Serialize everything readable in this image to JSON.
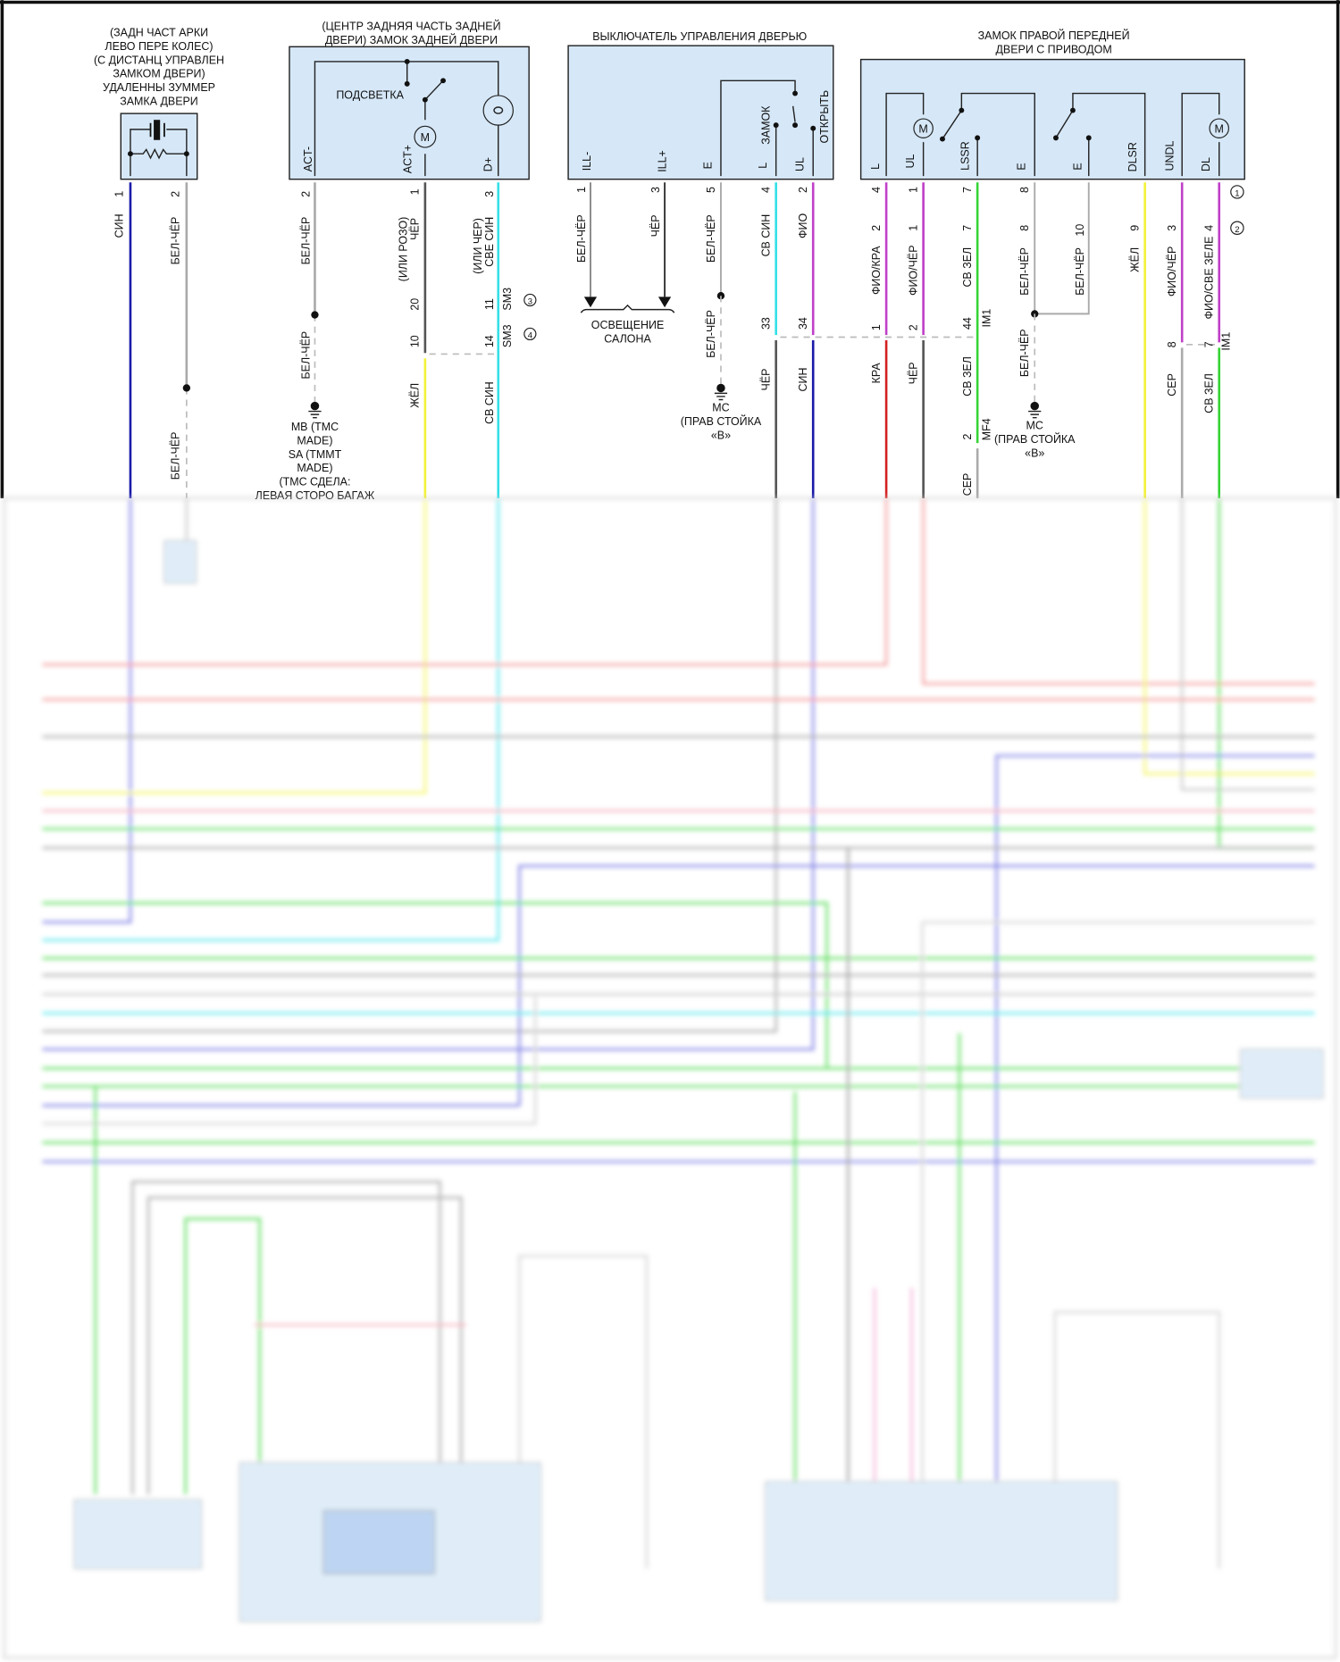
{
  "wire_colors": {
    "blue": "#1a1aa8",
    "grey": "#aaaaaa",
    "dark": "#555555",
    "cyan": "#33e0e8",
    "yellow": "#f2f23a",
    "magenta": "#c040c8",
    "red": "#d42020",
    "green": "#36d436"
  },
  "buzzer": {
    "title": [
      "(ЗАДН ЧАСТ АРКИ",
      "ЛЕВО ПЕРЕ КОЛЕС)",
      "(С ДИСТАНЦ УПРАВЛЕН",
      "ЗАМКОМ ДВЕРИ)",
      "УДАЛЕННЫ ЗУММЕР",
      "ЗАМКА ДВЕРИ"
    ],
    "pins": [
      "1",
      "2"
    ],
    "wires": [
      "СИН",
      "БЕЛ-ЧЁР",
      "БЕЛ-ЧЁР"
    ]
  },
  "rear_lock": {
    "title": [
      "(ЦЕНТР ЗАДНЯЯ ЧАСТЬ ЗАДНЕЙ",
      "ДВЕРИ) ЗАМОК ЗАДНЕЙ ДВЕРИ"
    ],
    "backlight": "ПОДСВЕТКА",
    "motor": "M",
    "terminals": [
      "ACT-",
      "ACT+",
      "D+"
    ],
    "pins": [
      "2",
      "1",
      "3"
    ],
    "wires": [
      "БЕЛ-ЧЁР",
      "ЧЁР",
      "(ИЛИ РОЗО)",
      "СВЕ СИН",
      "(ИЛИ ЧЕР)"
    ],
    "conn_a": {
      "pins": [
        "20",
        "11"
      ],
      "name": "SM3",
      "marker": "3"
    },
    "conn_b": {
      "pins": [
        "10",
        "14"
      ],
      "name": "SM3",
      "marker": "4"
    },
    "ground_wire": "БЕЛ-ЧЁР",
    "ground_label": [
      "MB (TMC",
      "MADE)",
      "SA (TMMT",
      "MADE)",
      "(TMC СДЕЛА:",
      "ЛЕВАЯ СТОРО БАГАЖ"
    ],
    "lower_wires": [
      "ЖЁЛ",
      "СВ СИН"
    ]
  },
  "door_switch": {
    "title": "ВЫКЛЮЧАТЕЛЬ УПРАВЛЕНИЯ ДВЕРЬЮ",
    "terminals": [
      "ILL-",
      "ILL+",
      "E",
      "L",
      "UL"
    ],
    "positions": [
      "ЗАМОК",
      "ОТКРЫТЬ"
    ],
    "pins": [
      "1",
      "3",
      "5",
      "4",
      "2"
    ],
    "wires": [
      "БЕЛ-ЧЁР",
      "ЧЁР",
      "БЕЛ-ЧЁР",
      "СВ СИН",
      "ФИО"
    ],
    "lighting": [
      "ОСВЕЩЕНИЕ",
      "САЛОНА"
    ],
    "ground_wire": "БЕЛ-ЧЁР",
    "ground_label": [
      "MC",
      "(ПРАВ СТОЙКА",
      "«В»"
    ],
    "conn_pins": [
      "33",
      "34"
    ],
    "lower_wires": [
      "ЧЁР",
      "СИН"
    ]
  },
  "front_lock": {
    "title": [
      "ЗАМОК ПРАВОЙ ПЕРЕДНЕЙ",
      "ДВЕРИ С ПРИВОДОМ"
    ],
    "motor": "M",
    "terminals": [
      "L",
      "UL",
      "LSSR",
      "E",
      "E",
      "DLSR",
      "UNDL",
      "DL"
    ],
    "pins_1": [
      "4",
      "1",
      "7",
      "8"
    ],
    "marker_1": "1",
    "pins_2": [
      "2",
      "1",
      "7",
      "8",
      "10",
      "9",
      "3",
      "4"
    ],
    "marker_2": "2",
    "wires": [
      "ФИО/КРА",
      "ФИО/ЧЁР",
      "СВ ЗЕЛ",
      "БЕЛ-ЧЁР",
      "БЕЛ-ЧЁР",
      "ЖЁЛ",
      "ФИО/ЧЁР",
      "ФИО/СВЕ ЗЕЛЕ"
    ],
    "conn_im1_a": {
      "pins": [
        "1",
        "2",
        "44"
      ],
      "name": "IM1"
    },
    "conn_im1_b": {
      "pins": [
        "8",
        "7"
      ],
      "name": "IM1"
    },
    "lower_wires": [
      "КРА",
      "ЧЁР",
      "СВ ЗЕЛ",
      "БЕЛ-ЧЁР",
      "СЕР",
      "СВ ЗЕЛ"
    ],
    "conn_mf4": {
      "pin": "2",
      "name": "MF4"
    },
    "mf4_wire": "СЕР",
    "ground_label": [
      "MC",
      "(ПРАВ СТОЙКА",
      "«В»"
    ]
  }
}
